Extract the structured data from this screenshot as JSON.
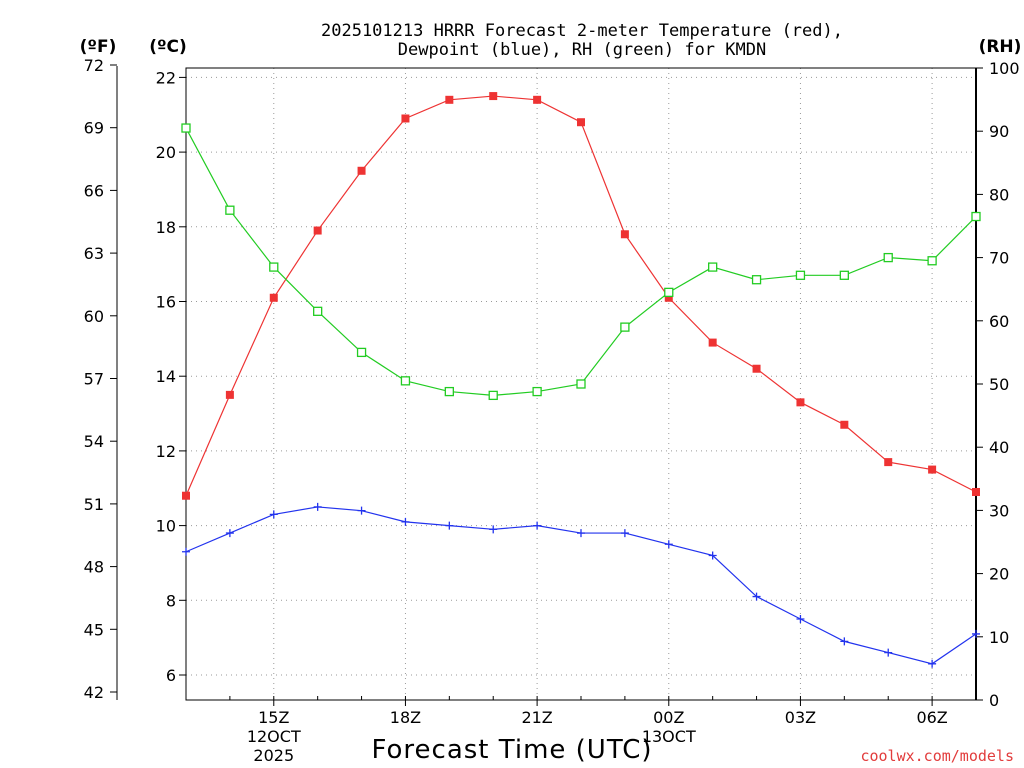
{
  "chart_data": {
    "type": "line",
    "title_line1": "2025101213 HRRR Forecast 2-meter Temperature (red),",
    "title_line2": "Dewpoint (blue), RH (green) for KMDN",
    "xlabel": "Forecast Time (UTC)",
    "credit": "coolwx.com/models",
    "unit_f": "(ºF)",
    "unit_c": "(ºC)",
    "unit_rh": "(RH)",
    "x_hours": [
      13,
      14,
      15,
      16,
      17,
      18,
      19,
      20,
      21,
      22,
      23,
      24,
      25,
      26,
      27,
      28,
      29,
      30,
      31
    ],
    "x_ticks": [
      {
        "hour": 15,
        "lines": [
          "15Z",
          "12OCT",
          "2025"
        ]
      },
      {
        "hour": 18,
        "lines": [
          "18Z"
        ]
      },
      {
        "hour": 21,
        "lines": [
          "21Z"
        ]
      },
      {
        "hour": 24,
        "lines": [
          "00Z",
          "13OCT"
        ]
      },
      {
        "hour": 27,
        "lines": [
          "03Z"
        ]
      },
      {
        "hour": 30,
        "lines": [
          "06Z"
        ]
      }
    ],
    "xlim": [
      13,
      31
    ],
    "c_ticks": [
      6,
      8,
      10,
      12,
      14,
      16,
      18,
      20,
      22
    ],
    "f_ticks": [
      42,
      45,
      48,
      51,
      54,
      57,
      60,
      63,
      66,
      69,
      72
    ],
    "rh_ticks": [
      0,
      10,
      20,
      30,
      40,
      50,
      60,
      70,
      80,
      90,
      100
    ],
    "series": [
      {
        "name": "Temperature",
        "units": "C",
        "color": "#ee3333",
        "marker": "filled-square",
        "values": [
          10.8,
          13.5,
          16.1,
          17.9,
          19.5,
          20.9,
          21.4,
          21.5,
          21.4,
          20.8,
          17.8,
          16.1,
          14.9,
          14.2,
          13.3,
          12.7,
          11.7,
          11.5,
          10.9
        ]
      },
      {
        "name": "Dewpoint",
        "units": "C",
        "color": "#2233ee",
        "marker": "plus",
        "values": [
          9.3,
          9.8,
          10.3,
          10.5,
          10.4,
          10.1,
          10.0,
          9.9,
          10.0,
          9.8,
          9.8,
          9.5,
          9.2,
          8.1,
          7.5,
          6.9,
          6.6,
          6.3,
          7.1
        ]
      },
      {
        "name": "RH",
        "units": "%",
        "color": "#22cc22",
        "marker": "open-square",
        "values": [
          90.5,
          77.5,
          68.5,
          61.5,
          55.0,
          50.5,
          48.8,
          48.2,
          48.8,
          50.0,
          59.0,
          64.5,
          68.5,
          66.5,
          67.2,
          67.2,
          70.0,
          69.5,
          76.5
        ]
      }
    ]
  }
}
